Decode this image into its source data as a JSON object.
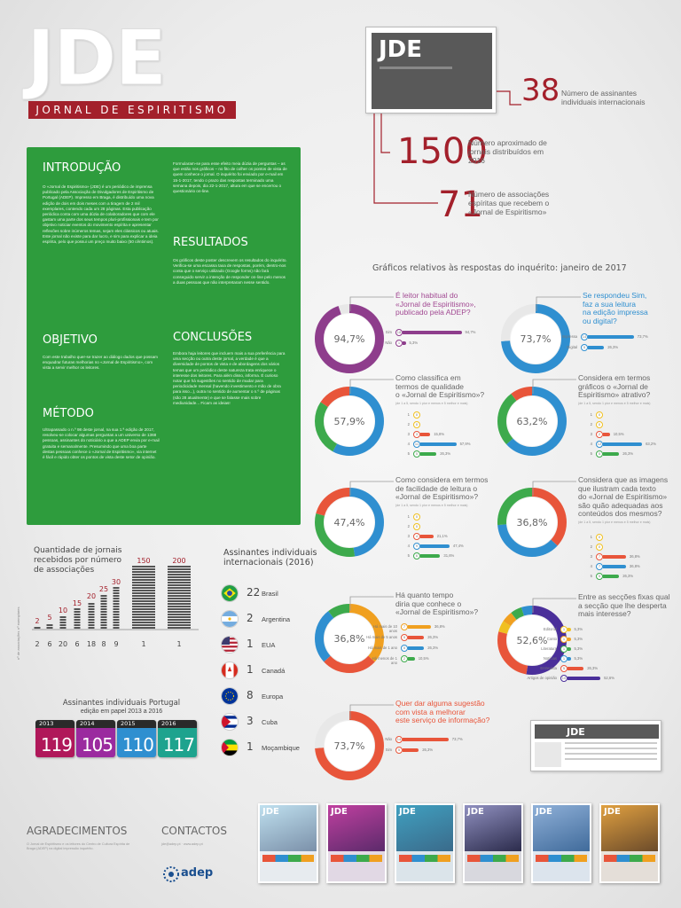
{
  "header": {
    "logo": "JDE",
    "subtitle": "JORNAL DE ESPIRITISMO",
    "frame_logo": "JDE"
  },
  "stats": [
    {
      "value": "38",
      "label": "Número de assinantes individuais internacionais"
    },
    {
      "value": "1500",
      "label": "Número aproximado de jornais distribuídos em 2016"
    },
    {
      "value": "71",
      "label": "Número de associações espíritas que recebem o «Jornal de Espiritismo»"
    }
  ],
  "intro": {
    "intro_title": "INTRODUÇÃO",
    "intro_text": "O «Jornal de Espiritismo» (JDE) é um periódico de imprensa publicado pela Associação de Divulgadores de Espiritismo de Portugal (ADEP). Impresso em Braga, é distribuído uma nova edição de dois em dois meses com a tiragem de 2 mil exemplares, contendo cada um 28 páginas. Esta publicação periódica conta com uma dúzia de colaboradores que com ele gastam uma parte dos seus tempos pluri-profissionais e tem por objetivo noticiar eventos do movimento espírita e apresentar reflexões sobre inúmeros temas, sejam eles clássicos ou atuais. Este jornal não existe para dar lucro, e sim para explicar a ideia espírita, pelo que possui um preço muito baixo (50 cêntimos).",
    "objetivo_title": "OBJETIVO",
    "objetivo_text": "Com este trabalho quer-se trazer ao diálogo dados que possam enquadrar futuras melhorias no «Jornal de Espiritismo», com vista a servir melhor os leitores.",
    "metodo_title": "MÉTODO",
    "metodo_text": "Ultrapassado o n.º 98 deste jornal, na sua 1.ª edição de 2017, resolveu-se colocar algumas perguntas a um universo de 1368 pessoas, assinantes do noticiário a que a ADEP envia por e-mail gratuita e semanalmente. Presumindo que uma boa parte destas pessoas conhece o «Jornal de Espiritismo», via internet é fácil e rápido obter os pontos de vista deste setor de opinião.",
    "col2_text": "Formularam-se para esse efeito meia dúzia de perguntas – as que estão nos gráficos – no fito de colher os pontos de vista de quem conhece o jornal. O inquérito foi enviado por e-mail em 15-1-2017, tendo o prazo das respostas terminado uma semana depois, dia 22-1-2017, altura em que se encerrou o questionário on-line.",
    "resultados_title": "RESULTADOS",
    "resultados_text": "Os gráficos deste poster descrevem os resultados do inquérito. Verifica-se uma escassa taxa de respostas, porém, dentro-nos conta que o serviço utilizado (Google forms) não fará conseguido servir a intenção de responder on-line pelo menos a duas pessoas que não interpretaram nesse sentido.",
    "conclusoes_title": "CONCLUSÕES",
    "conclusoes_text": "Embora haja leitores que incluem mais a sua preferência para uma secção ou outra deste jornal, a verdade é que a diversidade de pontos de vista e de abordagens dos vários temas que um periódico deste natureza trata enriquece o interesse dos leitores. Para além disso, informa. É curioso notar que há sugestões no sentido de mudar para periodicidade mensal (havendo investimento e mão de obra para isso...), outra no sentido de aumentar o n.º de páginas (são 28 atualmente) e que se falasse mais sobre mediunidade... Ficam as ideias!"
  },
  "surveys_title": "Gráficos relativos às respostas do inquérito: janeiro de 2017",
  "donuts": [
    {
      "id": "q1",
      "pct": "94,7%",
      "q": [
        "É leitor habitual do",
        "«Jornal de Espiritismo»,",
        "publicado pela ADEP?"
      ],
      "sub": "",
      "qcolor": "#a24a93",
      "opts": [
        {
          "label": "Sim",
          "n": "18",
          "v": "94,7%",
          "f": 0.95,
          "c": "#8e3d8c"
        },
        {
          "label": "Não",
          "n": "1",
          "v": "5,3%",
          "f": 0.05,
          "c": "#8e3d8c"
        }
      ]
    },
    {
      "id": "q2",
      "pct": "73,7%",
      "q": [
        "Se respondeu Sim,",
        "faz a sua leitura",
        "na edição impressa",
        "ou digital?"
      ],
      "sub": "",
      "qcolor": "#2f8fd0",
      "opts": [
        {
          "label": "Impressa",
          "n": "14",
          "v": "73,7%",
          "f": 0.74,
          "c": "#2f8fd0"
        },
        {
          "label": "Digital",
          "n": "5",
          "v": "26,3%",
          "f": 0.26,
          "c": "#2f8fd0"
        }
      ]
    },
    {
      "id": "q3",
      "pct": "57,9%",
      "q": [
        "Como classifica em",
        "termos de qualidade",
        "o «Jornal de Espiritismo»?"
      ],
      "sub": "(de 1 a 5, sendo 1 pior e menos e 5 melhor e mais)",
      "qcolor": "#666",
      "opts": [
        {
          "label": "1",
          "n": "0",
          "v": "",
          "f": 0,
          "c": "#f0c020"
        },
        {
          "label": "2",
          "n": "0",
          "v": "",
          "f": 0,
          "c": "#f0c020"
        },
        {
          "label": "3",
          "n": "3",
          "v": "15,8%",
          "f": 0.16,
          "c": "#e8553a"
        },
        {
          "label": "4",
          "n": "11",
          "v": "57,9%",
          "f": 0.58,
          "c": "#2f8fd0"
        },
        {
          "label": "5",
          "n": "5",
          "v": "26,3%",
          "f": 0.26,
          "c": "#3daa4c"
        }
      ]
    },
    {
      "id": "q4",
      "pct": "63,2%",
      "q": [
        "Considera em termos",
        "gráficos o «Jornal de",
        "Espiritismo» atrativo?"
      ],
      "sub": "(de 1 a 5, sendo 1 pior e menos e 5 melhor e mais)",
      "qcolor": "#666",
      "opts": [
        {
          "label": "1",
          "n": "0",
          "v": "",
          "f": 0,
          "c": "#f0c020"
        },
        {
          "label": "2",
          "n": "0",
          "v": "",
          "f": 0,
          "c": "#f0c020"
        },
        {
          "label": "3",
          "n": "2",
          "v": "10,5%",
          "f": 0.11,
          "c": "#e8553a"
        },
        {
          "label": "4",
          "n": "12",
          "v": "63,2%",
          "f": 0.63,
          "c": "#2f8fd0"
        },
        {
          "label": "5",
          "n": "5",
          "v": "26,3%",
          "f": 0.26,
          "c": "#3daa4c"
        }
      ]
    },
    {
      "id": "q5",
      "pct": "47,4%",
      "q": [
        "Como considera em termos",
        "de facilidade de leitura o",
        "«Jornal de Espiritismo»?"
      ],
      "sub": "(de 1 a 5, sendo 1 pior e menos e 5 melhor e mais)",
      "qcolor": "#666",
      "opts": [
        {
          "label": "1",
          "n": "0",
          "v": "",
          "f": 0,
          "c": "#f0c020"
        },
        {
          "label": "2",
          "n": "0",
          "v": "",
          "f": 0,
          "c": "#f0c020"
        },
        {
          "label": "3",
          "n": "4",
          "v": "21,1%",
          "f": 0.21,
          "c": "#e8553a"
        },
        {
          "label": "4",
          "n": "9",
          "v": "47,4%",
          "f": 0.47,
          "c": "#2f8fd0"
        },
        {
          "label": "5",
          "n": "6",
          "v": "31,6%",
          "f": 0.32,
          "c": "#3daa4c"
        }
      ]
    },
    {
      "id": "q6",
      "pct": "36,8%",
      "q": [
        "Considera que as imagens",
        "que ilustram cada texto",
        "do «Jornal de Espiritismo»",
        "são quão adequadas aos",
        "conteúdos dos mesmos?"
      ],
      "sub": "(de 1 a 5, sendo 1 pior e menos e 5 melhor e mais)",
      "qcolor": "#666",
      "opts": [
        {
          "label": "1",
          "n": "0",
          "v": "",
          "f": 0,
          "c": "#f0c020"
        },
        {
          "label": "2",
          "n": "0",
          "v": "",
          "f": 0,
          "c": "#f0c020"
        },
        {
          "label": "3",
          "n": "7",
          "v": "36,8%",
          "f": 0.37,
          "c": "#e8553a"
        },
        {
          "label": "4",
          "n": "7",
          "v": "36,8%",
          "f": 0.37,
          "c": "#2f8fd0"
        },
        {
          "label": "5",
          "n": "5",
          "v": "26,3%",
          "f": 0.26,
          "c": "#3daa4c"
        }
      ]
    },
    {
      "id": "q7",
      "pct": "36,8%",
      "q": [
        "Há quanto tempo",
        "diria que conhece o",
        "«Jornal de Espiritismo»?"
      ],
      "sub": "",
      "qcolor": "#666",
      "opts": [
        {
          "label": "Há mais de 10 anos",
          "n": "7",
          "v": "36,8%",
          "f": 0.37,
          "c": "#f0a020"
        },
        {
          "label": "Há mais de 5 anos",
          "n": "5",
          "v": "26,3%",
          "f": 0.26,
          "c": "#e8553a"
        },
        {
          "label": "Há mais de 1 ano",
          "n": "5",
          "v": "26,3%",
          "f": 0.26,
          "c": "#2f8fd0"
        },
        {
          "label": "Há menos de 1 ano",
          "n": "2",
          "v": "10,5%",
          "f": 0.11,
          "c": "#3daa4c"
        }
      ]
    },
    {
      "id": "q8",
      "pct": "52,6%",
      "q": [
        "Entre as secções fixas qual",
        "a secção que lhe desperta",
        "mais interesse?"
      ],
      "sub": "",
      "qcolor": "#666",
      "opts": [
        {
          "label": "Editorial",
          "n": "1",
          "v": "5,3%",
          "f": 0.05,
          "c": "#f0c020"
        },
        {
          "label": "Conto",
          "n": "1",
          "v": "5,3%",
          "f": 0.05,
          "c": "#f0a020"
        },
        {
          "label": "Literatura",
          "n": "1",
          "v": "5,3%",
          "f": 0.05,
          "c": "#3daa4c"
        },
        {
          "label": "Notícias",
          "n": "1",
          "v": "5,3%",
          "f": 0.05,
          "c": "#2f8fd0"
        },
        {
          "label": "Entrevista",
          "n": "5",
          "v": "26,3%",
          "f": 0.26,
          "c": "#e8553a"
        },
        {
          "label": "Artigos de opinião",
          "n": "10",
          "v": "52,6%",
          "f": 0.53,
          "c": "#4a2f9a"
        }
      ]
    },
    {
      "id": "q9",
      "pct": "73,7%",
      "q": [
        "Quer dar alguma sugestão",
        "com vista a melhorar",
        "este serviço de informação?"
      ],
      "sub": "",
      "qcolor": "#e8553a",
      "opts": [
        {
          "label": "Não",
          "n": "14",
          "v": "73,7%",
          "f": 0.74,
          "c": "#e8553a"
        },
        {
          "label": "Sim",
          "n": "5",
          "v": "26,3%",
          "f": 0.26,
          "c": "#e8553a"
        }
      ]
    }
  ],
  "chart_data": {
    "type": "bar",
    "title": "Quantidade de jornais recebidos por número de associações",
    "xlabel": "nº de associações",
    "ylabel": "nº exemplares",
    "categories": [
      "2",
      "6",
      "20",
      "6",
      "18",
      "8",
      "9",
      "1",
      "1"
    ],
    "values": [
      2,
      5,
      10,
      15,
      20,
      25,
      30,
      150,
      200
    ]
  },
  "countries": {
    "title": "Assinantes individuais internacionais (2016)",
    "items": [
      {
        "n": "22",
        "name": "Brasil",
        "flag": "brazil"
      },
      {
        "n": "2",
        "name": "Argentina",
        "flag": "argentina"
      },
      {
        "n": "1",
        "name": "EUA",
        "flag": "usa"
      },
      {
        "n": "1",
        "name": "Canadá",
        "flag": "canada"
      },
      {
        "n": "8",
        "name": "Europa",
        "flag": "eu"
      },
      {
        "n": "3",
        "name": "Cuba",
        "flag": "cuba"
      },
      {
        "n": "1",
        "name": "Moçambique",
        "flag": "mozambique"
      }
    ]
  },
  "portugal": {
    "title": "Assinantes individuais Portugal",
    "subtitle": "edição em papel 2013 a 2016",
    "badges": [
      {
        "year": "2013",
        "n": "119",
        "color": "#b0185a"
      },
      {
        "year": "2014",
        "n": "105",
        "color": "#9b2a9f"
      },
      {
        "year": "2015",
        "n": "110",
        "color": "#2f8fd0"
      },
      {
        "year": "2016",
        "n": "117",
        "color": "#1ea38e"
      }
    ]
  },
  "footer": {
    "agradecimentos_title": "AGRADECIMENTOS",
    "agradecimentos_text": "O Jornal de Espiritismo e os leitores do Centro de Cultura Espírita de Braga (ADEP) na digital impressão inquérito.",
    "contactos_title": "CONTACTOS",
    "contactos_text": "jde@adep.pt · www.adep.pt",
    "adep": "adep"
  },
  "colors": {
    "brand_red": "#a3202b",
    "green": "#2e9c3d"
  }
}
